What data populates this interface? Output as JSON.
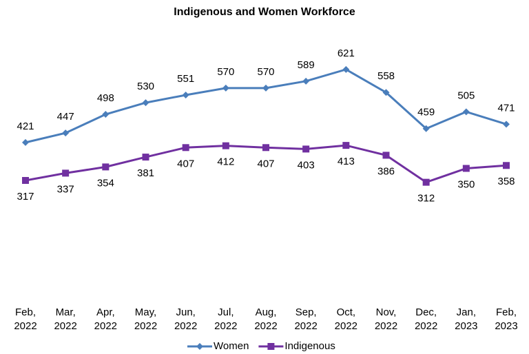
{
  "chart_data": {
    "type": "line",
    "title": "Indigenous and Women Workforce",
    "categories": [
      "Feb, 2022",
      "Mar, 2022",
      "Apr, 2022",
      "May, 2022",
      "Jun, 2022",
      "Jul, 2022",
      "Aug, 2022",
      "Sep, 2022",
      "Oct, 2022",
      "Nov, 2022",
      "Dec, 2022",
      "Jan, 2023",
      "Feb, 2023"
    ],
    "series": [
      {
        "name": "Women",
        "color": "#4a7ebb",
        "marker": "diamond",
        "values": [
          421,
          447,
          498,
          530,
          551,
          570,
          570,
          589,
          621,
          558,
          459,
          505,
          471
        ]
      },
      {
        "name": "Indigenous",
        "color": "#7030a0",
        "marker": "square",
        "values": [
          317,
          337,
          354,
          381,
          407,
          412,
          407,
          403,
          413,
          386,
          312,
          350,
          358
        ]
      }
    ],
    "ylim": [
      0,
      700
    ],
    "legend": "bottom"
  }
}
